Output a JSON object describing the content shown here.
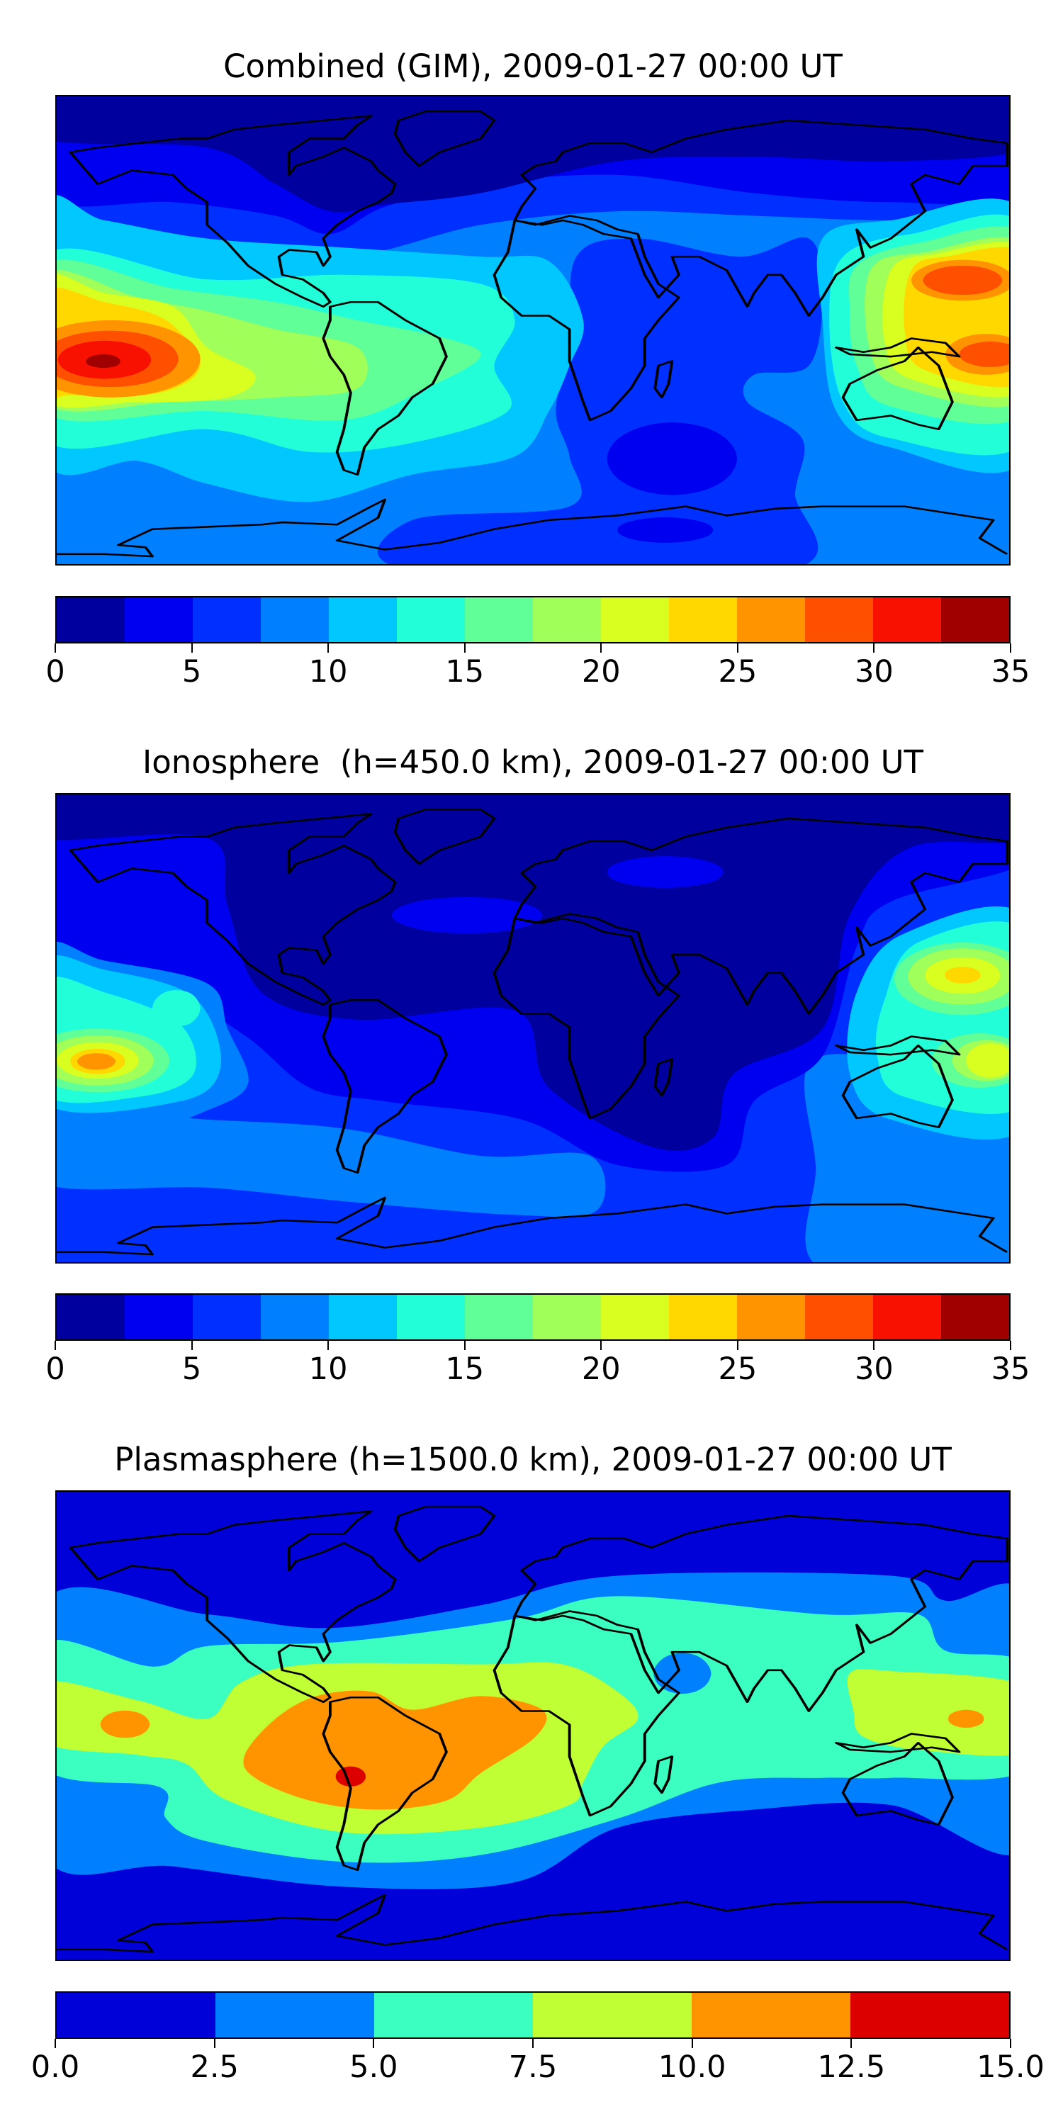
{
  "chart_data": [
    {
      "type": "heatmap",
      "subtype": "filled contour map (world, plate carree)",
      "title": "Combined (GIM), 2009-01-27 00:00 UT",
      "colorbar": {
        "ticks": [
          "0",
          "5",
          "10",
          "15",
          "20",
          "25",
          "30",
          "35"
        ],
        "range": [
          0,
          35
        ],
        "levels": [
          0,
          2.5,
          5,
          7.5,
          10,
          12.5,
          15,
          17.5,
          20,
          22.5,
          25,
          27.5,
          30,
          32.5,
          35
        ],
        "colors": [
          "#00009f",
          "#0000f0",
          "#0030ff",
          "#0080ff",
          "#00c8ff",
          "#22ffd8",
          "#60ff98",
          "#a0ff58",
          "#d8ff20",
          "#ffd800",
          "#ff9400",
          "#ff5000",
          "#f81000",
          "#a00000"
        ]
      },
      "features": {
        "max_region": "central Pacific near equator (~30-35)",
        "min_region": "polar caps and south Indian Ocean (0-5)"
      }
    },
    {
      "type": "heatmap",
      "subtype": "filled contour map (world, plate carree)",
      "title": "Ionosphere  (h=450.0 km), 2009-01-27 00:00 UT",
      "colorbar": {
        "ticks": [
          "0",
          "5",
          "10",
          "15",
          "20",
          "25",
          "30",
          "35"
        ],
        "range": [
          0,
          35
        ],
        "levels": [
          0,
          2.5,
          5,
          7.5,
          10,
          12.5,
          15,
          17.5,
          20,
          22.5,
          25,
          27.5,
          30,
          32.5,
          35
        ],
        "colors": [
          "#00009f",
          "#0000f0",
          "#0030ff",
          "#0080ff",
          "#00c8ff",
          "#22ffd8",
          "#60ff98",
          "#a0ff58",
          "#d8ff20",
          "#ffd800",
          "#ff9400",
          "#ff5000",
          "#f81000",
          "#a00000"
        ]
      },
      "features": {
        "max_region": "central and western Pacific (~25-27.5)",
        "min_region": "Africa / Atlantic night side (0-2.5)"
      }
    },
    {
      "type": "heatmap",
      "subtype": "filled contour map (world, plate carree)",
      "title": "Plasmasphere (h=1500.0 km), 2009-01-27 00:00 UT",
      "colorbar": {
        "ticks": [
          "0.0",
          "2.5",
          "5.0",
          "7.5",
          "10.0",
          "12.5",
          "15.0"
        ],
        "range": [
          0,
          15
        ],
        "levels": [
          0,
          2.5,
          5,
          7.5,
          10,
          12.5,
          15
        ],
        "colors": [
          "#0000d8",
          "#0080ff",
          "#3affc0",
          "#c0ff33",
          "#ff9400",
          "#dd0000"
        ]
      },
      "features": {
        "max_region": "South America (~12.5-15)",
        "min_region": "high latitudes (0-2.5)"
      }
    }
  ]
}
